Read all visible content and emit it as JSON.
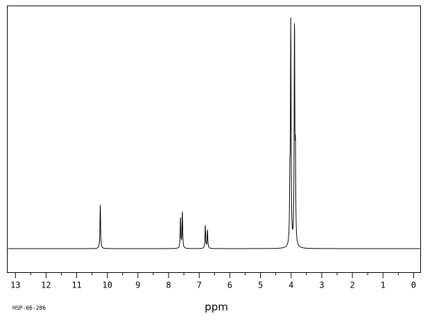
{
  "chart_data": {
    "type": "line",
    "title": "",
    "xlabel": "ppm",
    "ylabel": "",
    "sample_code": "HSP-06-286",
    "xlim": [
      13.5,
      -0.2
    ],
    "x_reversed": true,
    "ylim": [
      -0.11,
      1.0
    ],
    "grid": false,
    "major_ticks": [
      13,
      12,
      11,
      10,
      9,
      8,
      7,
      6,
      5,
      4,
      3,
      2,
      1,
      0
    ],
    "minor_tick_step": 0.5,
    "line_color": "#000000",
    "peaks": [
      {
        "x": 10.23,
        "y": 0.2
      },
      {
        "x": 7.61,
        "y": 0.135
      },
      {
        "x": 7.55,
        "y": 0.165
      },
      {
        "x": 6.8,
        "y": 0.105
      },
      {
        "x": 6.73,
        "y": 0.085
      },
      {
        "x": 4.04,
        "y": 0.27
      },
      {
        "x": 4.01,
        "y": 1.0
      },
      {
        "x": 3.89,
        "y": 0.99
      },
      {
        "x": 3.86,
        "y": 0.37
      }
    ]
  }
}
